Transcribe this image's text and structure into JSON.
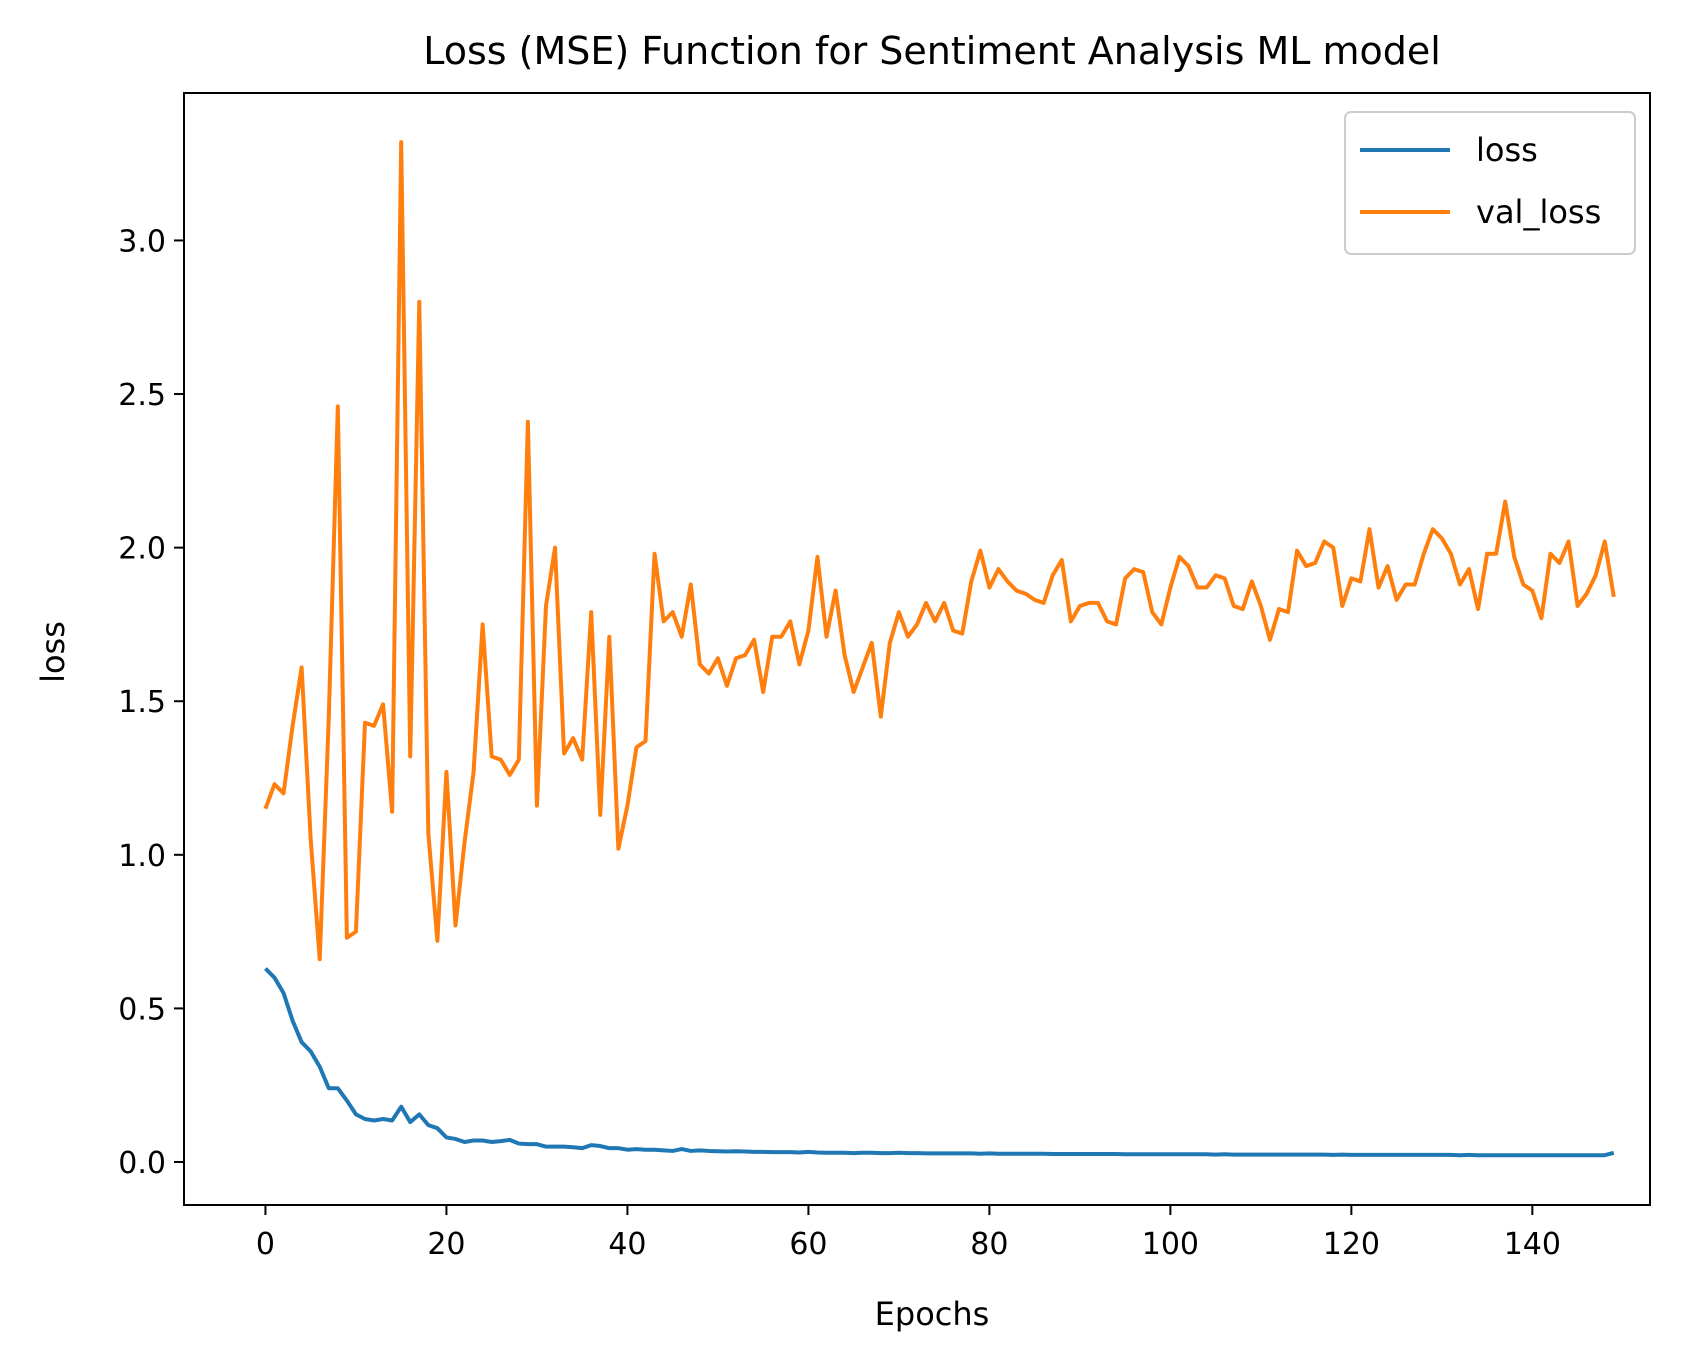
{
  "chart_data": {
    "type": "line",
    "title": "Loss (MSE) Function for Sentiment Analysis ML model",
    "xlabel": "Epochs",
    "ylabel": "loss",
    "xlim": [
      -9,
      153
    ],
    "ylim": [
      -0.14,
      3.48
    ],
    "xticks": [
      0,
      20,
      40,
      60,
      80,
      100,
      120,
      140
    ],
    "yticks": [
      0.0,
      0.5,
      1.0,
      1.5,
      2.0,
      2.5,
      3.0
    ],
    "xtick_labels": [
      "0",
      "20",
      "40",
      "60",
      "80",
      "100",
      "120",
      "140"
    ],
    "ytick_labels": [
      "0.0",
      "0.5",
      "1.0",
      "1.5",
      "2.0",
      "2.5",
      "3.0"
    ],
    "grid": false,
    "legend_position": "top-right",
    "series": [
      {
        "name": "loss",
        "color": "#1f77b4",
        "values": [
          0.63,
          0.6,
          0.55,
          0.46,
          0.39,
          0.36,
          0.31,
          0.24,
          0.24,
          0.2,
          0.155,
          0.14,
          0.135,
          0.14,
          0.135,
          0.18,
          0.13,
          0.155,
          0.12,
          0.11,
          0.08,
          0.075,
          0.065,
          0.07,
          0.07,
          0.065,
          0.068,
          0.072,
          0.06,
          0.058,
          0.058,
          0.05,
          0.05,
          0.05,
          0.048,
          0.045,
          0.055,
          0.052,
          0.045,
          0.045,
          0.04,
          0.042,
          0.04,
          0.04,
          0.038,
          0.036,
          0.042,
          0.036,
          0.038,
          0.036,
          0.035,
          0.034,
          0.035,
          0.034,
          0.033,
          0.033,
          0.032,
          0.032,
          0.032,
          0.031,
          0.033,
          0.031,
          0.03,
          0.03,
          0.03,
          0.029,
          0.03,
          0.03,
          0.029,
          0.029,
          0.03,
          0.029,
          0.029,
          0.028,
          0.028,
          0.028,
          0.028,
          0.028,
          0.028,
          0.027,
          0.028,
          0.027,
          0.027,
          0.027,
          0.027,
          0.027,
          0.027,
          0.026,
          0.026,
          0.026,
          0.026,
          0.026,
          0.026,
          0.026,
          0.026,
          0.025,
          0.025,
          0.025,
          0.025,
          0.025,
          0.025,
          0.025,
          0.025,
          0.025,
          0.025,
          0.024,
          0.025,
          0.024,
          0.024,
          0.024,
          0.024,
          0.024,
          0.024,
          0.024,
          0.024,
          0.024,
          0.024,
          0.024,
          0.023,
          0.024,
          0.023,
          0.023,
          0.023,
          0.023,
          0.023,
          0.023,
          0.023,
          0.023,
          0.023,
          0.023,
          0.023,
          0.023,
          0.022,
          0.023,
          0.022,
          0.022,
          0.022,
          0.022,
          0.022,
          0.022,
          0.022,
          0.022,
          0.022,
          0.022,
          0.022,
          0.022,
          0.022,
          0.022,
          0.022,
          0.03
        ]
      },
      {
        "name": "val_loss",
        "color": "#ff7f0e",
        "values": [
          1.15,
          1.23,
          1.2,
          1.42,
          1.61,
          1.05,
          0.66,
          1.45,
          2.46,
          0.73,
          0.75,
          1.43,
          1.42,
          1.49,
          1.14,
          3.32,
          1.32,
          2.8,
          1.07,
          0.72,
          1.27,
          0.77,
          1.04,
          1.27,
          1.75,
          1.32,
          1.31,
          1.26,
          1.31,
          2.41,
          1.16,
          1.81,
          2.0,
          1.33,
          1.38,
          1.31,
          1.79,
          1.13,
          1.71,
          1.02,
          1.16,
          1.35,
          1.37,
          1.98,
          1.76,
          1.79,
          1.71,
          1.88,
          1.62,
          1.59,
          1.64,
          1.55,
          1.64,
          1.65,
          1.7,
          1.53,
          1.71,
          1.71,
          1.76,
          1.62,
          1.73,
          1.97,
          1.71,
          1.86,
          1.65,
          1.53,
          1.61,
          1.69,
          1.45,
          1.69,
          1.79,
          1.71,
          1.75,
          1.82,
          1.76,
          1.82,
          1.73,
          1.72,
          1.89,
          1.99,
          1.87,
          1.93,
          1.89,
          1.86,
          1.85,
          1.83,
          1.82,
          1.91,
          1.96,
          1.76,
          1.81,
          1.82,
          1.82,
          1.76,
          1.75,
          1.9,
          1.93,
          1.92,
          1.79,
          1.75,
          1.87,
          1.97,
          1.94,
          1.87,
          1.87,
          1.91,
          1.9,
          1.81,
          1.8,
          1.89,
          1.81,
          1.7,
          1.8,
          1.79,
          1.99,
          1.94,
          1.95,
          2.02,
          2.0,
          1.81,
          1.9,
          1.89,
          2.06,
          1.87,
          1.94,
          1.83,
          1.88,
          1.88,
          1.98,
          2.06,
          2.03,
          1.98,
          1.88,
          1.93,
          1.8,
          1.98,
          1.98,
          2.15,
          1.97,
          1.88,
          1.86,
          1.77,
          1.98,
          1.95,
          2.02,
          1.81,
          1.85,
          1.91,
          2.02,
          1.84
        ]
      }
    ]
  }
}
